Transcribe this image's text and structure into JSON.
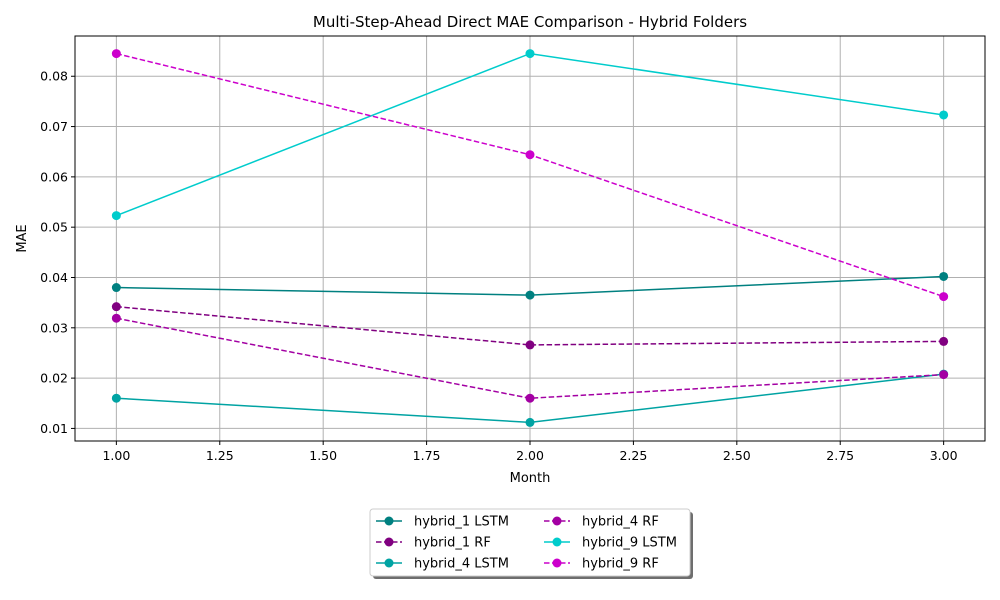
{
  "chart_data": {
    "type": "line",
    "title": "Multi-Step-Ahead Direct MAE Comparison - Hybrid Folders",
    "xlabel": "Month",
    "ylabel": "MAE",
    "xlim": [
      0.9,
      3.1
    ],
    "ylim": [
      0.0075,
      0.088
    ],
    "xticks": [
      1.0,
      1.25,
      1.5,
      1.75,
      2.0,
      2.25,
      2.5,
      2.75,
      3.0
    ],
    "xtick_labels": [
      "1.00",
      "1.25",
      "1.50",
      "1.75",
      "2.00",
      "2.25",
      "2.50",
      "2.75",
      "3.00"
    ],
    "yticks": [
      0.01,
      0.02,
      0.03,
      0.04,
      0.05,
      0.06,
      0.07,
      0.08
    ],
    "ytick_labels": [
      "0.01",
      "0.02",
      "0.03",
      "0.04",
      "0.05",
      "0.06",
      "0.07",
      "0.08"
    ],
    "grid": true,
    "legend_position": "bottom-center, below plot, 2 columns",
    "x": [
      1,
      2,
      3
    ],
    "series": [
      {
        "name": "hybrid_1 LSTM",
        "values": [
          0.038,
          0.0365,
          0.0402
        ],
        "color": "#008080",
        "dash": "solid"
      },
      {
        "name": "hybrid_1 RF",
        "values": [
          0.0342,
          0.0266,
          0.0273
        ],
        "color": "#800080",
        "dash": "dashed"
      },
      {
        "name": "hybrid_4 LSTM",
        "values": [
          0.016,
          0.0112,
          0.0208
        ],
        "color": "#00a3a3",
        "dash": "solid"
      },
      {
        "name": "hybrid_4 RF",
        "values": [
          0.0319,
          0.016,
          0.0207
        ],
        "color": "#a300a3",
        "dash": "dashed"
      },
      {
        "name": "hybrid_9 LSTM",
        "values": [
          0.0523,
          0.0845,
          0.0723
        ],
        "color": "#00cccc",
        "dash": "solid"
      },
      {
        "name": "hybrid_9 RF",
        "values": [
          0.0845,
          0.0644,
          0.0362
        ],
        "color": "#cc00cc",
        "dash": "dashed"
      }
    ]
  }
}
